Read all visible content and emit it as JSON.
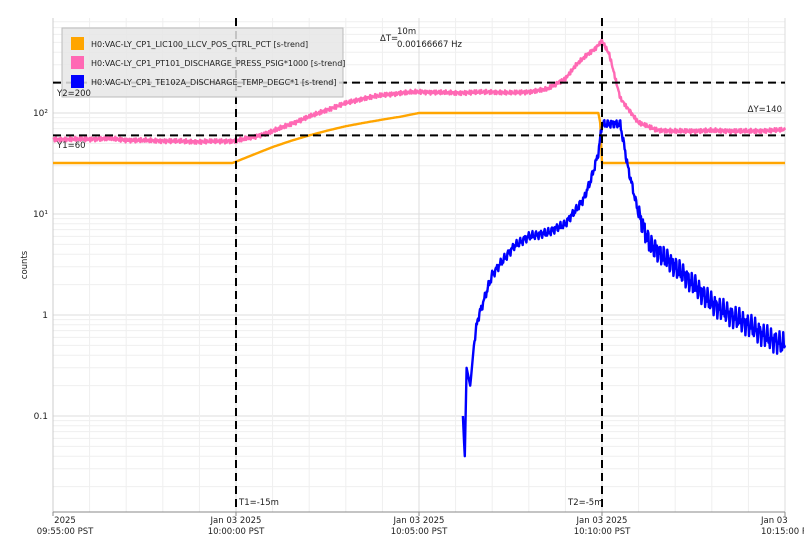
{
  "chart_data": {
    "type": "line",
    "ylabel": "counts",
    "yscale": "log",
    "ylim": [
      0.02,
      800
    ],
    "grid": true,
    "legend_position": "top-left",
    "x_ticks": [
      {
        "date": "2025",
        "time": "09:55:00 PST"
      },
      {
        "date": "Jan 03 2025",
        "time": "10:00:00 PST"
      },
      {
        "date": "Jan 03 2025",
        "time": "10:05:00 PST"
      },
      {
        "date": "Jan 03 2025",
        "time": "10:10:00 PST"
      },
      {
        "date": "Jan 03",
        "time": "10:15:00 PST"
      }
    ],
    "y_ticks": [
      {
        "value": 0.1,
        "label": "0.1"
      },
      {
        "value": 1,
        "label": "1"
      },
      {
        "value": 10,
        "label": "10¹"
      },
      {
        "value": 100,
        "label": "10²"
      }
    ],
    "series": [
      {
        "name": "H0:VAC-LY_CP1_LIC100_LLCV_POS_CTRL_PCT [s-trend]",
        "color": "#FFA500",
        "x": [
          0,
          4.9,
          5.0,
          5.5,
          6,
          6.5,
          7,
          7.5,
          8,
          8.5,
          9,
          9.5,
          10,
          12,
          14,
          14.9,
          14.95,
          15.0,
          20
        ],
        "y": [
          32,
          32,
          33,
          39,
          46,
          53,
          60,
          67,
          74,
          80,
          86,
          92,
          100,
          100,
          100,
          100,
          80,
          32,
          32
        ]
      },
      {
        "name": "H0:VAC-LY_CP1_PT101_DISCHARGE_PRESS_PSIG*1000 [s-trend]",
        "color": "#FF69B4",
        "x": [
          0,
          0.9,
          1.0,
          1.5,
          2,
          3,
          4,
          5,
          5.5,
          6,
          6.5,
          7,
          7.5,
          8,
          8.5,
          9,
          9.5,
          10,
          10.5,
          11,
          11.5,
          12,
          12.5,
          13,
          13.5,
          14,
          14.3,
          14.6,
          14.8,
          15.0,
          15.2,
          15.5,
          16,
          16.5,
          17,
          18,
          19,
          20
        ],
        "y": [
          55,
          55,
          55,
          56,
          54,
          53,
          52,
          53,
          58,
          66,
          78,
          92,
          108,
          125,
          140,
          150,
          158,
          162,
          160,
          158,
          160,
          162,
          158,
          162,
          172,
          220,
          300,
          380,
          430,
          520,
          380,
          140,
          80,
          68,
          66,
          67,
          66,
          68
        ]
      },
      {
        "name": "H0:VAC-LY_CP1_TE102A_DISCHARGE_TEMP_DEGC*1 [s-trend]",
        "color": "#0000FF",
        "x": [
          11.2,
          11.25,
          11.3,
          11.4,
          11.5,
          11.6,
          11.8,
          12,
          12.3,
          12.6,
          13,
          13.5,
          14,
          14.5,
          14.7,
          14.9,
          15.0,
          15.5,
          15.7,
          16,
          16.3,
          16.6,
          17,
          17.5,
          18,
          18.5,
          19,
          19.5,
          20
        ],
        "y": [
          0.1,
          0.04,
          0.3,
          0.2,
          0.5,
          0.9,
          1.5,
          2.5,
          3.5,
          4.8,
          6.0,
          6.5,
          8.0,
          14,
          22,
          40,
          78,
          78,
          30,
          10,
          5,
          4,
          3,
          2,
          1.3,
          1.0,
          0.8,
          0.6,
          0.5
        ]
      }
    ],
    "cursors": {
      "t1": {
        "x": 5.0,
        "label": "T1=-15m"
      },
      "t2": {
        "x": 15.0,
        "label": "T2=-5m"
      },
      "y1": {
        "y": 60,
        "label": "Y1=60"
      },
      "y2": {
        "y": 200,
        "label": "Y2=200"
      },
      "delta_t_label": "ΔT=",
      "delta_t_value": "10m",
      "delta_t_freq": "0.00166667 Hz",
      "delta_y_label": "ΔY=140"
    }
  }
}
